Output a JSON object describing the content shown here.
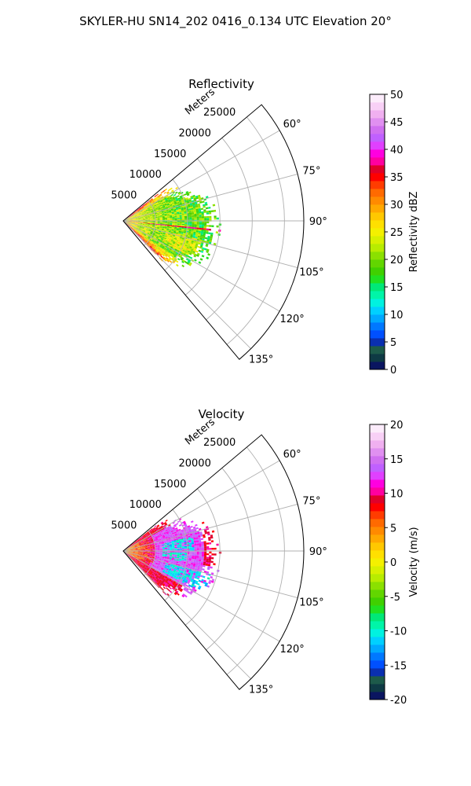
{
  "figure": {
    "suptitle": "SKYLER-HU  SN14_202  0416_0.134 UTC Elevation 20°"
  },
  "chart_data": [
    {
      "type": "heatmap",
      "subtype": "polar-ppi-sector",
      "title": "Reflectivity",
      "radial_label": "Meters",
      "radial_ticks": [
        5000,
        10000,
        15000,
        20000,
        25000
      ],
      "angle_ticks": [
        "60°",
        "75°",
        "90°",
        "105°",
        "120°",
        "135°"
      ],
      "angle_tick_values": [
        60,
        75,
        90,
        105,
        120,
        135
      ],
      "theta_range_deg": [
        50,
        140
      ],
      "r_max_m": 28000,
      "data_extent": {
        "r_max_m": 17500,
        "theta_min_deg": 52,
        "theta_max_deg": 136
      },
      "colorbar": {
        "label": "Reflectivity dBZ",
        "range": [
          0,
          50
        ],
        "ticks": [
          0,
          5,
          10,
          15,
          20,
          25,
          30,
          35,
          40,
          45,
          50
        ],
        "colors": [
          "#0a1560",
          "#0e3a44",
          "#1d5a4a",
          "#0a2fb0",
          "#0050ff",
          "#0078ff",
          "#00a8ff",
          "#00d0ff",
          "#00f2e0",
          "#00f5a8",
          "#00e878",
          "#20e020",
          "#40d000",
          "#62d600",
          "#8be000",
          "#b8ec00",
          "#d8f000",
          "#f4f000",
          "#ffe000",
          "#ffc800",
          "#ffa800",
          "#ff8a00",
          "#ff6a00",
          "#ff3c00",
          "#ff0000",
          "#e0002a",
          "#ff00a0",
          "#ff00e0",
          "#e040ff",
          "#c060ff",
          "#d070f0",
          "#e090f0",
          "#f0b0f0",
          "#f8d0f6",
          "#fcecfb"
        ]
      },
      "grid": true,
      "field_description": "green/yellow echoes, highest (orange-red) near origin on upper and lower edges"
    },
    {
      "type": "heatmap",
      "subtype": "polar-ppi-sector",
      "title": "Velocity",
      "radial_label": "Meters",
      "radial_ticks": [
        5000,
        10000,
        15000,
        20000,
        25000
      ],
      "angle_ticks": [
        "60°",
        "75°",
        "90°",
        "105°",
        "120°",
        "135°"
      ],
      "angle_tick_values": [
        60,
        75,
        90,
        105,
        120,
        135
      ],
      "theta_range_deg": [
        50,
        140
      ],
      "r_max_m": 28000,
      "data_extent": {
        "r_max_m": 17500,
        "theta_min_deg": 52,
        "theta_max_deg": 136
      },
      "colorbar": {
        "label": "Velocity (m/s)",
        "range": [
          -20,
          20
        ],
        "ticks": [
          -20,
          -15,
          -10,
          -5,
          0,
          5,
          10,
          15,
          20
        ],
        "colors": [
          "#0a1560",
          "#0e3a44",
          "#1d5a4a",
          "#0a2fb0",
          "#0050ff",
          "#0078ff",
          "#00a8ff",
          "#00d0ff",
          "#00f2e0",
          "#00f5a8",
          "#00e878",
          "#20e020",
          "#40d000",
          "#62d600",
          "#8be000",
          "#b8ec00",
          "#d8f000",
          "#f4f000",
          "#ffe000",
          "#ffc800",
          "#ffa800",
          "#ff8a00",
          "#ff6a00",
          "#ff3c00",
          "#ff0000",
          "#e0002a",
          "#ff00a0",
          "#ff00e0",
          "#e040ff",
          "#c060ff",
          "#d070f0",
          "#e090f0",
          "#f0b0f0",
          "#f8d0f6",
          "#fcecfb"
        ]
      },
      "grid": true,
      "field_description": "mostly magenta/purple (positive), red-orange at outer right, cyan patches (negative) near center-lower"
    }
  ]
}
